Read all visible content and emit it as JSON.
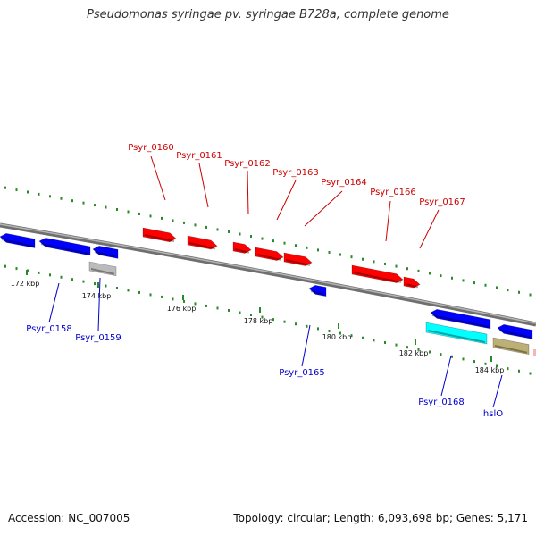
{
  "title": "Pseudomonas syringae pv. syringae B728a, complete genome",
  "footer": {
    "accession": "Accession: NC_007005",
    "summary": "Topology: circular; Length: 6,093,698 bp; Genes: 5,171"
  },
  "colors": {
    "forward_gene": "#ff0000",
    "reverse_gene": "#0000ff",
    "backbone": "#888888",
    "tick": "#2a8a2a",
    "label_red": "#cc0000",
    "label_blue": "#0000cc",
    "misc_gray": "#bbbbbb",
    "misc_cyan": "#00ffff",
    "misc_olive": "#bdb076"
  },
  "scale_labels": [
    "172 kbp",
    "174 kbp",
    "176 kbp",
    "178 kbp",
    "180 kbp",
    "182 kbp",
    "184 kbp"
  ],
  "gene_labels": [
    "Psyr_0160",
    "Psyr_0161",
    "Psyr_0162",
    "Psyr_0163",
    "Psyr_0164",
    "Psyr_0166",
    "Psyr_0167",
    "Psyr_0158",
    "Psyr_0159",
    "Psyr_0165",
    "Psyr_0168",
    "hslO"
  ]
}
